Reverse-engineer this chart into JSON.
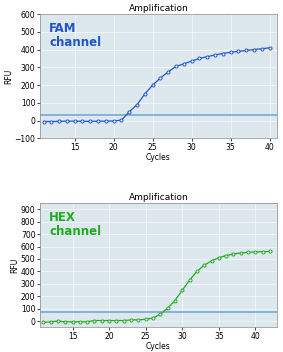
{
  "title": "Amplification",
  "fam_label": "FAM\nchannel",
  "hex_label": "HEX\nchannel",
  "xlabel": "Cycles",
  "ylabel": "RFU",
  "fam_color": "#2255cc",
  "hex_color": "#22aa22",
  "threshold_color": "#5599cc",
  "threshold_color2": "#5599cc",
  "fam_xlim": [
    10.5,
    41
  ],
  "fam_ylim": [
    -100,
    600
  ],
  "hex_xlim": [
    10.5,
    43
  ],
  "hex_ylim": [
    -50,
    950
  ],
  "fam_xticks": [
    15,
    20,
    25,
    30,
    35,
    40
  ],
  "hex_xticks": [
    15,
    20,
    25,
    30,
    35,
    40
  ],
  "fam_yticks": [
    -100,
    0,
    100,
    200,
    300,
    400,
    500,
    600
  ],
  "hex_yticks": [
    0,
    100,
    200,
    300,
    400,
    500,
    600,
    700,
    800,
    900
  ],
  "fam_threshold": 33,
  "hex_threshold": 75,
  "bg_color": "#dde8ee",
  "fam_x": [
    11,
    12,
    13,
    14,
    15,
    16,
    17,
    18,
    19,
    20,
    21,
    22,
    23,
    24,
    25,
    26,
    27,
    28,
    29,
    30,
    31,
    32,
    33,
    34,
    35,
    36,
    37,
    38,
    39,
    40
  ],
  "fam_y": [
    -5,
    -5,
    -4,
    -3,
    -3,
    -4,
    -4,
    -3,
    -3,
    -2,
    3,
    50,
    90,
    150,
    200,
    240,
    275,
    305,
    320,
    335,
    350,
    360,
    370,
    378,
    385,
    390,
    395,
    400,
    405,
    410
  ],
  "hex_x": [
    11,
    12,
    13,
    14,
    15,
    16,
    17,
    18,
    19,
    20,
    21,
    22,
    23,
    24,
    25,
    26,
    27,
    28,
    29,
    30,
    31,
    32,
    33,
    34,
    35,
    36,
    37,
    38,
    39,
    40,
    41,
    42
  ],
  "hex_y": [
    -10,
    -5,
    0,
    -5,
    -5,
    -5,
    -5,
    5,
    5,
    5,
    5,
    5,
    10,
    10,
    15,
    25,
    55,
    105,
    165,
    248,
    330,
    400,
    450,
    485,
    510,
    528,
    540,
    548,
    553,
    557,
    559,
    561
  ],
  "title_fontsize": 6.5,
  "tick_fontsize": 5.5,
  "channel_fontsize": 8.5,
  "ylabel_fontsize": 5.5,
  "xlabel_fontsize": 5.5
}
